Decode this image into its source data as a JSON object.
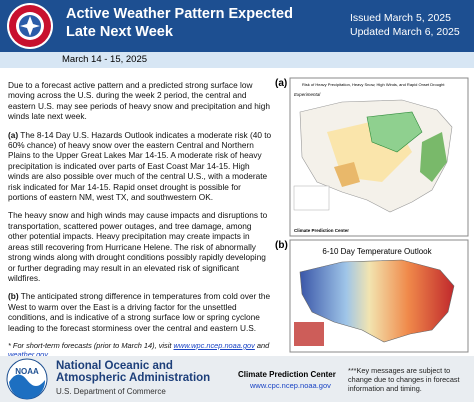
{
  "header": {
    "title_line1": "Active Weather Pattern Expected",
    "title_line2": "Late Next Week",
    "issued": "Issued March 5, 2025",
    "updated": "Updated March 6, 2025",
    "logo_text": "NATIONAL WEATHER SERVICE"
  },
  "date_band": "March 14 - 15, 2025",
  "body": {
    "p1": "Due to a forecast active pattern and a predicted strong surface low moving across the U.S. during the week 2 period, the central and eastern U.S. may see periods of heavy snow and precipitation and high winds late next week.",
    "p2": {
      "label": "(a)",
      "text": " The 8-14 Day U.S. Hazards Outlook indicates a moderate risk (40 to 60% chance) of heavy snow over the eastern Central and Northern Plains to the Upper Great Lakes Mar 14-15. A moderate risk of heavy precipitation is indicated over parts of East Coast Mar 14-15. High winds are also possible over much of the central U.S., with a moderate risk indicated for Mar 14-15. Rapid onset drought is possible for portions of eastern NM, west TX, and southwestern OK."
    },
    "p3": "The heavy snow and high winds may cause impacts and disruptions to transportation, scattered power outages, and tree damage, among other potential impacts. Heavy precipitation may create impacts in areas still recovering from Hurricane Helene. The risk of abnormally strong winds along with drought conditions possibly rapidly developing or further degrading may result in an elevated risk of significant wildfires.",
    "p4": {
      "label": "(b)",
      "text": " The anticipated strong difference in temperatures from cold over the West to warm over the East is a driving factor for the unsettled conditions, and is indicative of a strong surface low or spring cyclone leading to the forecast storminess over the central and eastern U.S."
    },
    "footnote": {
      "pre": "* For short-term forecasts (prior to March 14), visit ",
      "link1": "www.wpc.ncep.noaa.gov",
      "mid": " and ",
      "link2": "weather.gov",
      "post": "."
    }
  },
  "maps": {
    "a": {
      "label": "(a)",
      "title": "Risk of Heavy Precipitation, Heavy Snow, High Winds, and Rapid Onset Drought",
      "tag": "Experimental",
      "source": "Climate Prediction Center"
    },
    "b": {
      "label": "(b)",
      "title": "6-10 Day Temperature Outlook"
    }
  },
  "footer": {
    "org1": "National Oceanic and",
    "org2": "Atmospheric Administration",
    "dept": "U.S. Department of Commerce",
    "logo": "NOAA",
    "center": "Climate Prediction Center",
    "url": "www.cpc.ncep.noaa.gov",
    "note": "***Key messages are subject to change due to changes in forecast information and timing."
  }
}
